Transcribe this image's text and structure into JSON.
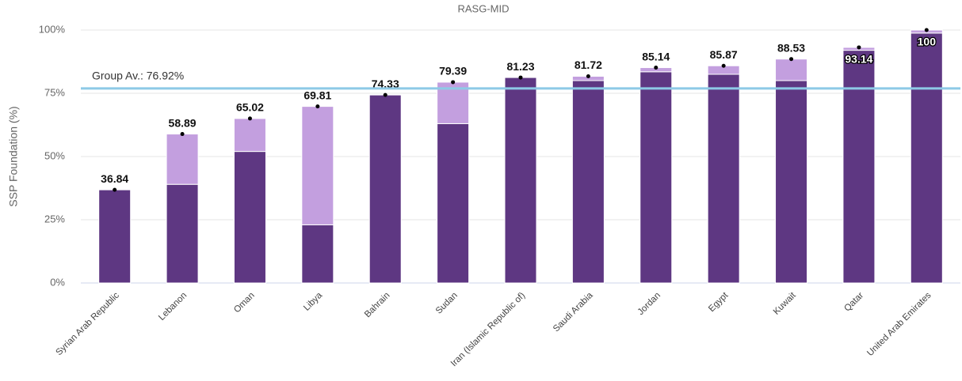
{
  "chart_data": {
    "type": "stacked-bar",
    "subtitle": "RASG-MID",
    "y_label": "SSP Foundation (%)",
    "categories": [
      "Syrian Arab Republic",
      "Lebanon",
      "Oman",
      "Libya",
      "Bahrain",
      "Sudan",
      "Iran (Islamic Republic of)",
      "Saudi Arabia",
      "Jordan",
      "Egypt",
      "Kuwait",
      "Qatar",
      "United Arab Emirates"
    ],
    "series": [
      {
        "color": "#5e3782",
        "values": [
          36.84,
          39,
          52,
          23,
          74.33,
          63,
          81.23,
          80,
          83.5,
          82.5,
          80,
          92,
          98.8
        ]
      },
      {
        "color": "#c39fdf",
        "values": [
          0,
          19.89,
          13.02,
          46.81,
          0,
          16.39,
          0,
          1.72,
          1.64,
          3.37,
          8.53,
          1.14,
          1.2
        ]
      }
    ],
    "totals": [
      36.84,
      58.89,
      65.02,
      69.81,
      74.33,
      79.39,
      81.23,
      81.72,
      85.14,
      85.87,
      88.53,
      93.14,
      100
    ],
    "reference_line": {
      "value": 76.92,
      "label": "Group Av.: 76.92%",
      "color": "#8ecae6"
    },
    "ylim": [
      0,
      100
    ],
    "yticks": [
      {
        "value": 0,
        "label": "0%"
      },
      {
        "value": 25,
        "label": "25%"
      },
      {
        "value": 50,
        "label": "50%"
      },
      {
        "value": 75,
        "label": "75%"
      },
      {
        "value": 100,
        "label": "100%"
      }
    ],
    "grid": true
  }
}
